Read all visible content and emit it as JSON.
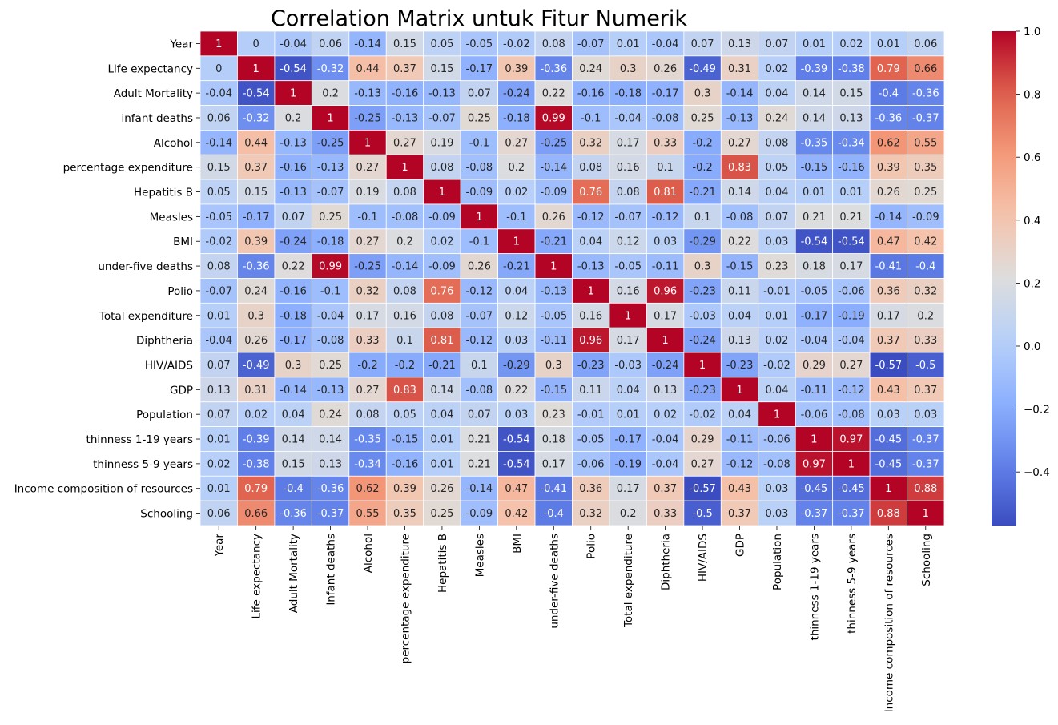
{
  "chart_data": {
    "type": "heatmap",
    "title": "Correlation Matrix untuk Fitur Numerik",
    "xlabel": "",
    "ylabel": "",
    "labels": [
      "Year",
      "Life expectancy",
      "Adult Mortality",
      "infant deaths",
      "Alcohol",
      "percentage expenditure",
      "Hepatitis B",
      "Measles",
      "BMI",
      "under-five deaths",
      "Polio",
      "Total expenditure",
      "Diphtheria",
      "HIV/AIDS",
      "GDP",
      "Population",
      "thinness  1-19 years",
      "thinness 5-9 years",
      "Income composition of resources",
      "Schooling"
    ],
    "matrix": [
      [
        1,
        0,
        -0.04,
        0.06,
        -0.14,
        0.15,
        0.05,
        -0.05,
        -0.02,
        0.08,
        -0.07,
        0.01,
        -0.04,
        0.07,
        0.13,
        0.07,
        0.01,
        0.02,
        0.01,
        0.06
      ],
      [
        0,
        1,
        -0.54,
        -0.32,
        0.44,
        0.37,
        0.15,
        -0.17,
        0.39,
        -0.36,
        0.24,
        0.3,
        0.26,
        -0.49,
        0.31,
        0.02,
        -0.39,
        -0.38,
        0.79,
        0.66
      ],
      [
        -0.04,
        -0.54,
        1,
        0.2,
        -0.13,
        -0.16,
        -0.13,
        0.07,
        -0.24,
        0.22,
        -0.16,
        -0.18,
        -0.17,
        0.3,
        -0.14,
        0.04,
        0.14,
        0.15,
        -0.4,
        -0.36
      ],
      [
        0.06,
        -0.32,
        0.2,
        1,
        -0.25,
        -0.13,
        -0.07,
        0.25,
        -0.18,
        0.99,
        -0.1,
        -0.04,
        -0.08,
        0.25,
        -0.13,
        0.24,
        0.14,
        0.13,
        -0.36,
        -0.37
      ],
      [
        -0.14,
        0.44,
        -0.13,
        -0.25,
        1,
        0.27,
        0.19,
        -0.1,
        0.27,
        -0.25,
        0.32,
        0.17,
        0.33,
        -0.2,
        0.27,
        0.08,
        -0.35,
        -0.34,
        0.62,
        0.55
      ],
      [
        0.15,
        0.37,
        -0.16,
        -0.13,
        0.27,
        1,
        0.08,
        -0.08,
        0.2,
        -0.14,
        0.08,
        0.16,
        0.1,
        -0.2,
        0.83,
        0.05,
        -0.15,
        -0.16,
        0.39,
        0.35
      ],
      [
        0.05,
        0.15,
        -0.13,
        -0.07,
        0.19,
        0.08,
        1,
        -0.09,
        0.02,
        -0.09,
        0.76,
        0.08,
        0.81,
        -0.21,
        0.14,
        0.04,
        0.01,
        0.01,
        0.26,
        0.25
      ],
      [
        -0.05,
        -0.17,
        0.07,
        0.25,
        -0.1,
        -0.08,
        -0.09,
        1,
        -0.1,
        0.26,
        -0.12,
        -0.07,
        -0.12,
        0.1,
        -0.08,
        0.07,
        0.21,
        0.21,
        -0.14,
        -0.09
      ],
      [
        -0.02,
        0.39,
        -0.24,
        -0.18,
        0.27,
        0.2,
        0.02,
        -0.1,
        1,
        -0.21,
        0.04,
        0.12,
        0.03,
        -0.29,
        0.22,
        0.03,
        -0.54,
        -0.54,
        0.47,
        0.42
      ],
      [
        0.08,
        -0.36,
        0.22,
        0.99,
        -0.25,
        -0.14,
        -0.09,
        0.26,
        -0.21,
        1,
        -0.13,
        -0.05,
        -0.11,
        0.3,
        -0.15,
        0.23,
        0.18,
        0.17,
        -0.41,
        -0.4
      ],
      [
        -0.07,
        0.24,
        -0.16,
        -0.1,
        0.32,
        0.08,
        0.76,
        -0.12,
        0.04,
        -0.13,
        1,
        0.16,
        0.96,
        -0.23,
        0.11,
        -0.01,
        -0.05,
        -0.06,
        0.36,
        0.32
      ],
      [
        0.01,
        0.3,
        -0.18,
        -0.04,
        0.17,
        0.16,
        0.08,
        -0.07,
        0.12,
        -0.05,
        0.16,
        1,
        0.17,
        -0.03,
        0.04,
        0.01,
        -0.17,
        -0.19,
        0.17,
        0.2
      ],
      [
        -0.04,
        0.26,
        -0.17,
        -0.08,
        0.33,
        0.1,
        0.81,
        -0.12,
        0.03,
        -0.11,
        0.96,
        0.17,
        1,
        -0.24,
        0.13,
        0.02,
        -0.04,
        -0.04,
        0.37,
        0.33
      ],
      [
        0.07,
        -0.49,
        0.3,
        0.25,
        -0.2,
        -0.2,
        -0.21,
        0.1,
        -0.29,
        0.3,
        -0.23,
        -0.03,
        -0.24,
        1,
        -0.23,
        -0.02,
        0.29,
        0.27,
        -0.57,
        -0.5
      ],
      [
        0.13,
        0.31,
        -0.14,
        -0.13,
        0.27,
        0.83,
        0.14,
        -0.08,
        0.22,
        -0.15,
        0.11,
        0.04,
        0.13,
        -0.23,
        1,
        0.04,
        -0.11,
        -0.12,
        0.43,
        0.37
      ],
      [
        0.07,
        0.02,
        0.04,
        0.24,
        0.08,
        0.05,
        0.04,
        0.07,
        0.03,
        0.23,
        -0.01,
        0.01,
        0.02,
        -0.02,
        0.04,
        1,
        -0.06,
        -0.08,
        0.03,
        0.03
      ],
      [
        0.01,
        -0.39,
        0.14,
        0.14,
        -0.35,
        -0.15,
        0.01,
        0.21,
        -0.54,
        0.18,
        -0.05,
        -0.17,
        -0.04,
        0.29,
        -0.11,
        -0.06,
        1,
        0.97,
        -0.45,
        -0.37
      ],
      [
        0.02,
        -0.38,
        0.15,
        0.13,
        -0.34,
        -0.16,
        0.01,
        0.21,
        -0.54,
        0.17,
        -0.06,
        -0.19,
        -0.04,
        0.27,
        -0.12,
        -0.08,
        0.97,
        1,
        -0.45,
        -0.37
      ],
      [
        0.01,
        0.79,
        -0.4,
        -0.36,
        0.62,
        0.39,
        0.26,
        -0.14,
        0.47,
        -0.41,
        0.36,
        0.17,
        0.37,
        -0.57,
        0.43,
        0.03,
        -0.45,
        -0.45,
        1,
        0.88
      ],
      [
        0.06,
        0.66,
        -0.36,
        -0.37,
        0.55,
        0.35,
        0.25,
        -0.09,
        0.42,
        -0.4,
        0.32,
        0.2,
        0.33,
        -0.5,
        0.37,
        0.03,
        -0.37,
        -0.37,
        0.88,
        1
      ]
    ],
    "colormap": "coolwarm",
    "vmin": -0.57,
    "vmax": 1,
    "colorbar_ticks": [
      -0.4,
      -0.2,
      0.0,
      0.2,
      0.4,
      0.6,
      0.8,
      1.0
    ],
    "colorbar_tick_labels": [
      "−0.4",
      "−0.2",
      "0.0",
      "0.2",
      "0.4",
      "0.6",
      "0.8",
      "1.0"
    ],
    "cell_border_color": "#ffffff",
    "grid": false
  }
}
